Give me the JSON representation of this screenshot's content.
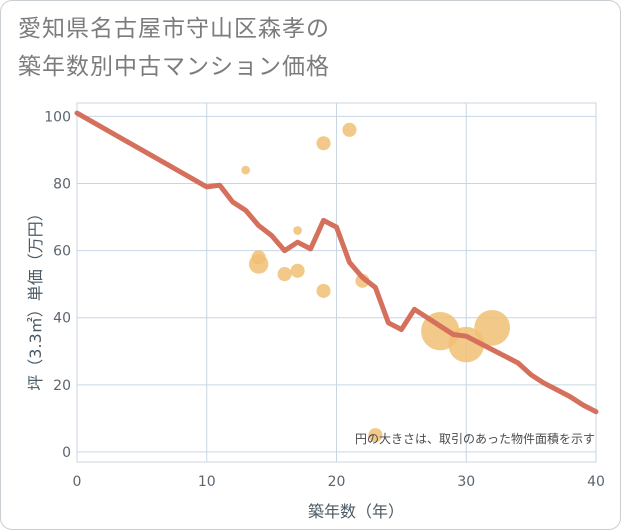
{
  "title_line1": "愛知県名古屋市守山区森孝の",
  "title_line2": "築年数別中古マンション価格",
  "note": "円の大きさは、取引のあった物件面積を示す",
  "chart_data": {
    "type": "scatter",
    "xlabel": "築年数（年）",
    "ylabel": "坪（3.3㎡）単価（万円）",
    "xlim": [
      0,
      40
    ],
    "ylim": [
      -3,
      104
    ],
    "xticks": [
      0,
      10,
      20,
      30,
      40
    ],
    "yticks": [
      0,
      20,
      40,
      60,
      80,
      100
    ],
    "grid": true,
    "colors": {
      "line": "#d4705c",
      "points": "#f0bf73",
      "grid": "#c8d6e2"
    },
    "points": [
      {
        "x": 13,
        "y": 84,
        "size": 1
      },
      {
        "x": 14,
        "y": 56,
        "size": 5
      },
      {
        "x": 14,
        "y": 58,
        "size": 3
      },
      {
        "x": 16,
        "y": 53,
        "size": 3
      },
      {
        "x": 17,
        "y": 54,
        "size": 3
      },
      {
        "x": 17,
        "y": 66,
        "size": 1
      },
      {
        "x": 19,
        "y": 92,
        "size": 3
      },
      {
        "x": 19,
        "y": 48,
        "size": 3
      },
      {
        "x": 21,
        "y": 96,
        "size": 3
      },
      {
        "x": 22,
        "y": 51,
        "size": 3
      },
      {
        "x": 23,
        "y": 5,
        "size": 3
      },
      {
        "x": 28,
        "y": 36,
        "size": 12
      },
      {
        "x": 30,
        "y": 32,
        "size": 11
      },
      {
        "x": 32,
        "y": 37,
        "size": 11
      }
    ],
    "series": [
      {
        "x": [
          0,
          10,
          11,
          12,
          13,
          14,
          15,
          16,
          17,
          18,
          19,
          20,
          21,
          22,
          23,
          24,
          25,
          26,
          27,
          28,
          29,
          30,
          31,
          32,
          33,
          34,
          35,
          36,
          37,
          38,
          39,
          40
        ],
        "values": [
          101,
          79,
          79.5,
          74.5,
          72,
          67.5,
          64.5,
          60,
          62.5,
          60.5,
          69,
          67,
          56.5,
          52,
          49,
          38.5,
          36.5,
          42.5,
          40,
          37.5,
          35,
          34.5,
          32.5,
          30.5,
          28.5,
          26.5,
          23,
          20.5,
          18.5,
          16.5,
          14,
          12
        ]
      }
    ]
  }
}
